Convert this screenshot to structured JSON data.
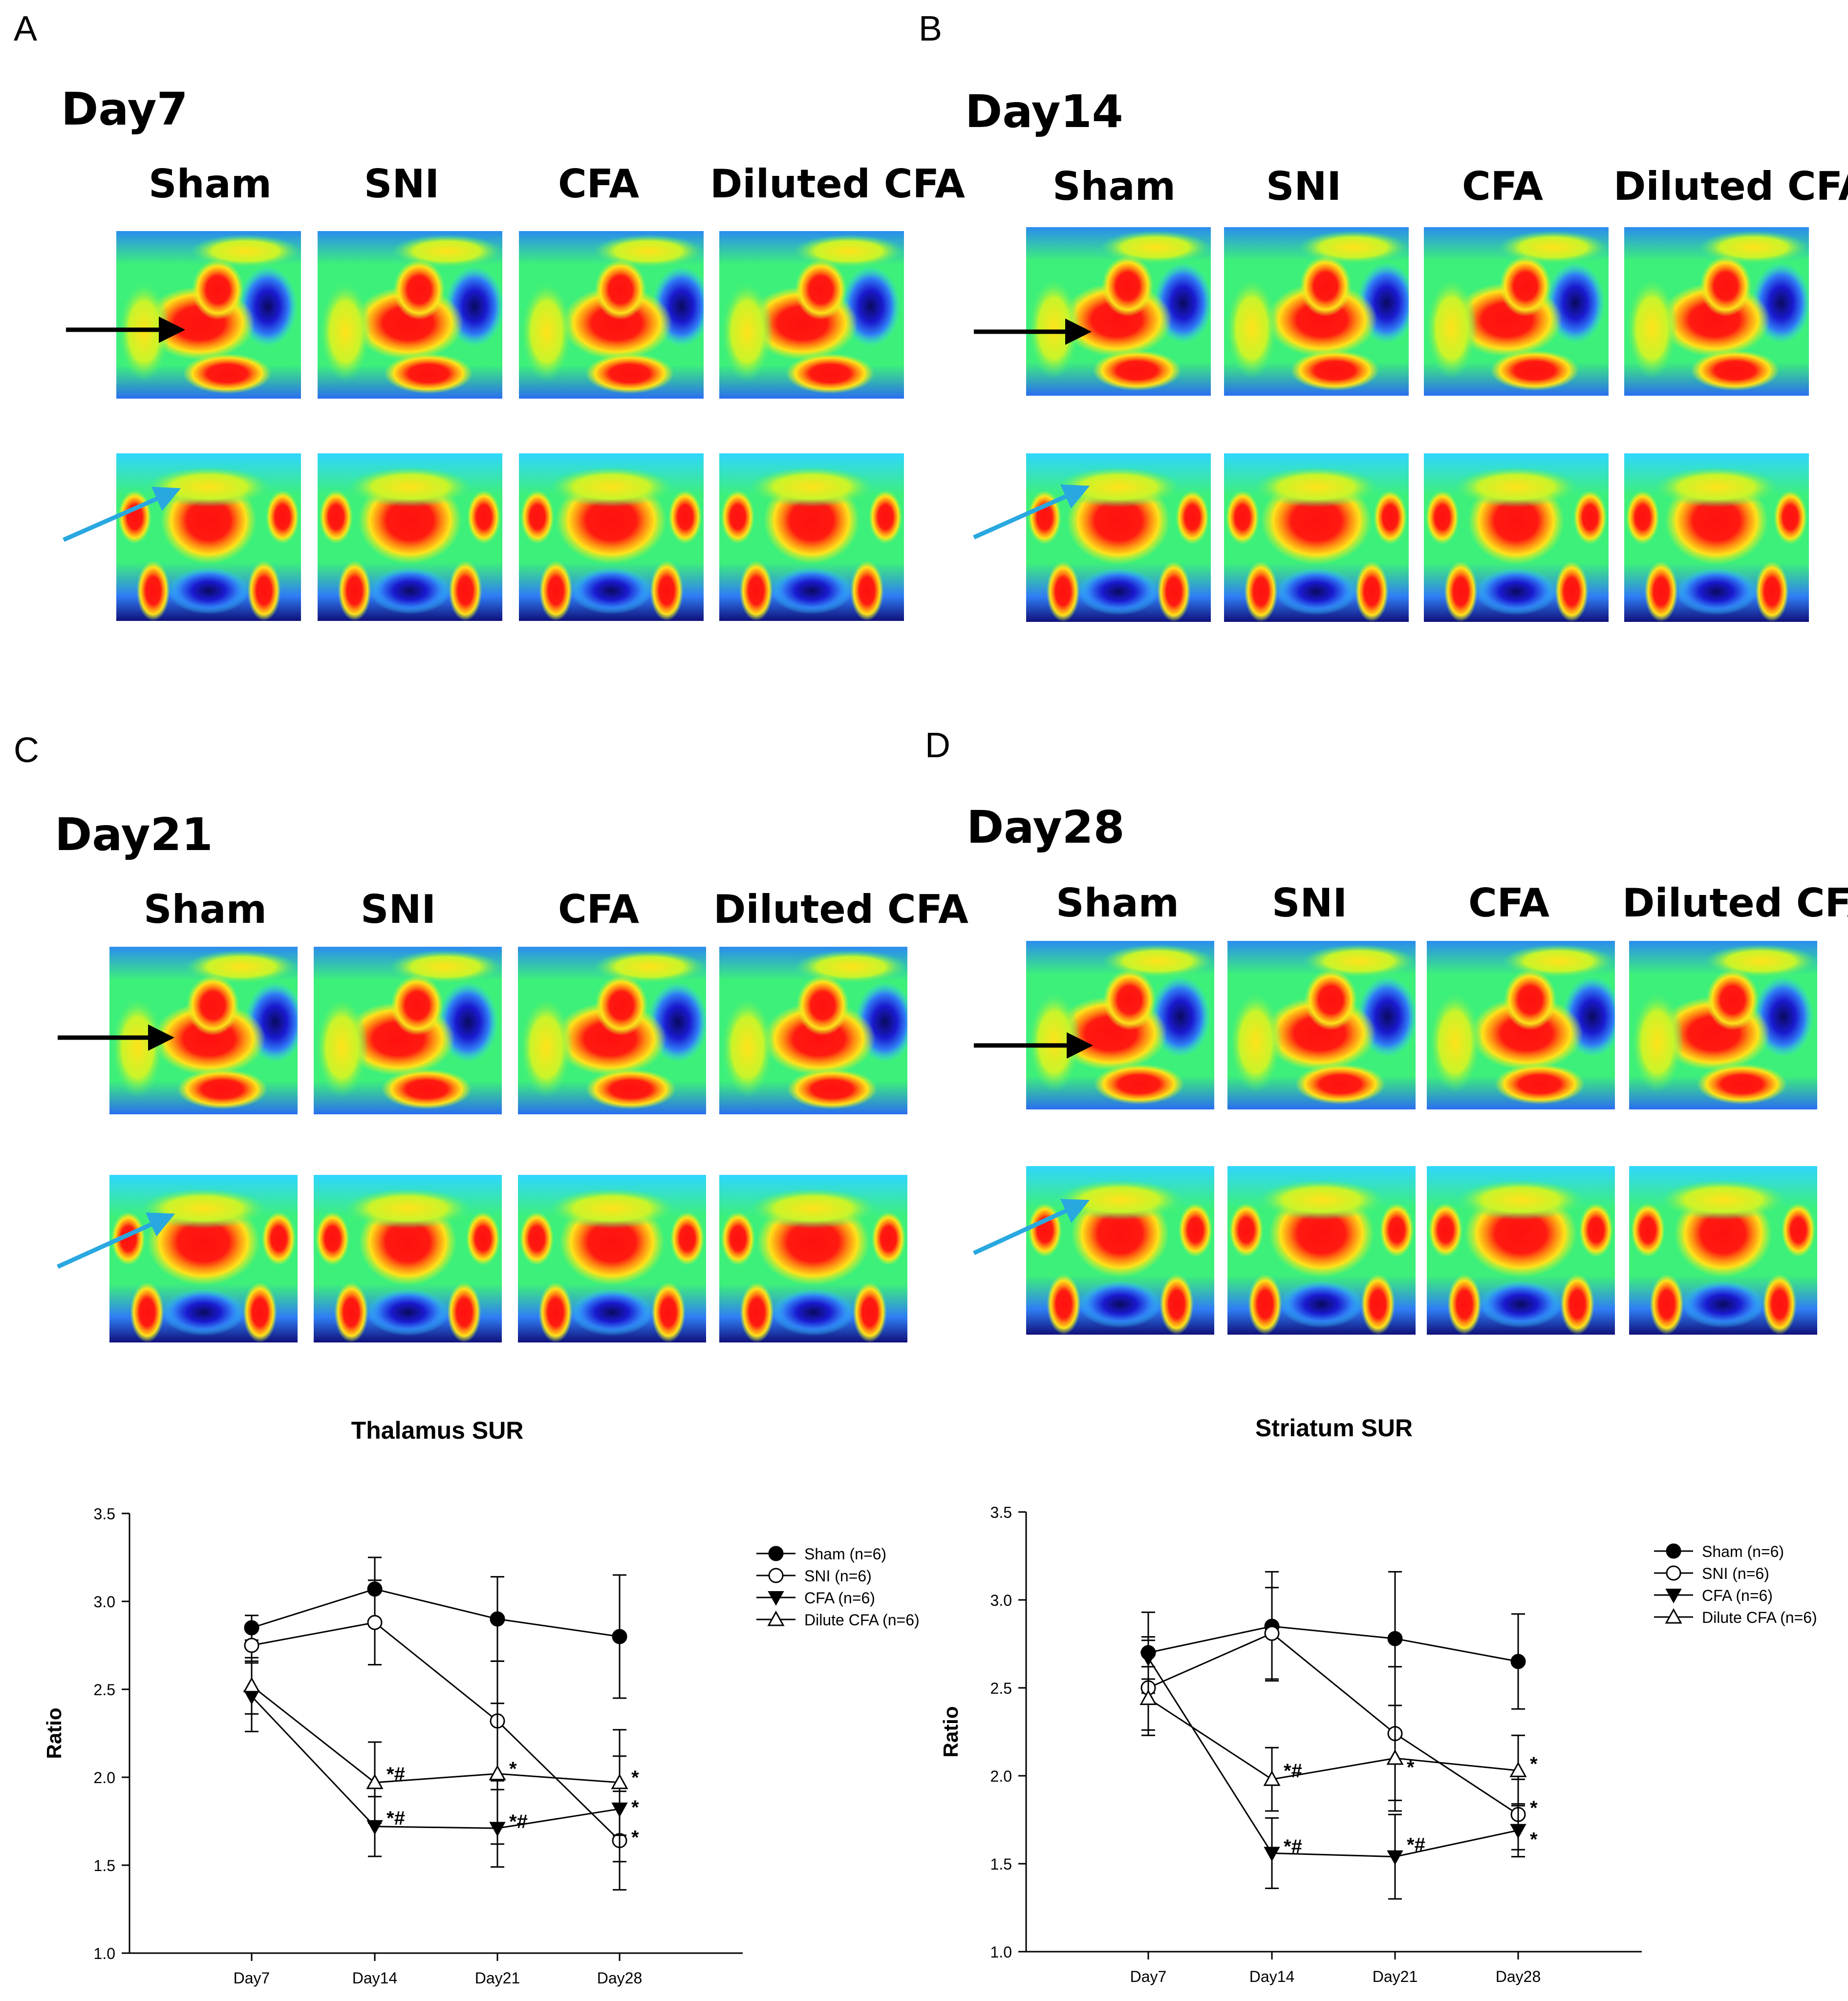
{
  "panel_labels": [
    "A",
    "B",
    "C",
    "D"
  ],
  "panels": [
    {
      "label": "A",
      "day": "Day7"
    },
    {
      "label": "B",
      "day": "Day14"
    },
    {
      "label": "C",
      "day": "Day21"
    },
    {
      "label": "D",
      "day": "Day28"
    }
  ],
  "conditions": [
    "Sham",
    "SNI",
    "CFA",
    "Diluted CFA"
  ],
  "image_views": [
    "sagittal",
    "coronal"
  ],
  "colors": {
    "arrow_black": "#000000",
    "arrow_blue": "#29a8e0",
    "heatmap": [
      "#0a0a40",
      "#1a1ad0",
      "#2f7df5",
      "#2fd6ff",
      "#3df07a",
      "#c8f52a",
      "#ffe21a",
      "#ff7a10",
      "#ff1010"
    ]
  },
  "chart_data": [
    {
      "type": "line",
      "title": "Thalamus SUR",
      "ylabel": "Ratio",
      "xlabel": "",
      "categories": [
        "Day7",
        "Day14",
        "Day21",
        "Day28"
      ],
      "ylim": [
        1.0,
        3.5
      ],
      "yticks": [
        "1.0",
        "1.5",
        "2.0",
        "2.5",
        "3.0",
        "3.5"
      ],
      "legend_position": "top-right",
      "series": [
        {
          "name": "Sham (n=6)",
          "marker": "filled-circle",
          "values": [
            2.85,
            3.07,
            2.9,
            2.8
          ],
          "errors": [
            0.07,
            0.18,
            0.24,
            0.35
          ]
        },
        {
          "name": "SNI (n=6)",
          "marker": "open-circle",
          "values": [
            2.75,
            2.88,
            2.32,
            1.64
          ],
          "errors": [
            0.1,
            0.24,
            0.34,
            0.28
          ]
        },
        {
          "name": "CFA (n=6)",
          "marker": "filled-triangle-down",
          "values": [
            2.46,
            1.72,
            1.71,
            1.82
          ],
          "errors": [
            0.2,
            0.17,
            0.22,
            0.3
          ]
        },
        {
          "name": "Dilute CFA (n=6)",
          "marker": "open-triangle-up",
          "values": [
            2.52,
            1.97,
            2.02,
            1.97
          ],
          "errors": [
            0.16,
            0.23,
            0.4,
            0.3
          ]
        }
      ],
      "annotations": [
        {
          "x": "Day14",
          "y": 2.02,
          "text": "*#"
        },
        {
          "x": "Day14",
          "y": 1.77,
          "text": "*#"
        },
        {
          "x": "Day21",
          "y": 2.05,
          "text": "*"
        },
        {
          "x": "Day21",
          "y": 1.75,
          "text": "*#"
        },
        {
          "x": "Day28",
          "y": 2.0,
          "text": "*"
        },
        {
          "x": "Day28",
          "y": 1.83,
          "text": "*"
        },
        {
          "x": "Day28",
          "y": 1.66,
          "text": "*"
        }
      ]
    },
    {
      "type": "line",
      "title": "Striatum SUR",
      "ylabel": "Ratio",
      "xlabel": "",
      "categories": [
        "Day7",
        "Day14",
        "Day21",
        "Day28"
      ],
      "ylim": [
        1.0,
        3.5
      ],
      "yticks": [
        "1.0",
        "1.5",
        "2.0",
        "2.5",
        "3.0",
        "3.5"
      ],
      "legend_position": "top-right",
      "series": [
        {
          "name": "Sham (n=6)",
          "marker": "filled-circle",
          "values": [
            2.7,
            2.85,
            2.78,
            2.65
          ],
          "errors": [
            0.23,
            0.31,
            0.38,
            0.27
          ]
        },
        {
          "name": "SNI (n=6)",
          "marker": "open-circle",
          "values": [
            2.5,
            2.81,
            2.24,
            1.78
          ],
          "errors": [
            0.27,
            0.26,
            0.38,
            0.2
          ]
        },
        {
          "name": "CFA (n=6)",
          "marker": "filled-triangle-down",
          "values": [
            2.67,
            1.56,
            1.54,
            1.69
          ],
          "errors": [
            0.12,
            0.2,
            0.24,
            0.15
          ]
        },
        {
          "name": "Dilute CFA (n=6)",
          "marker": "open-triangle-up",
          "values": [
            2.44,
            1.98,
            2.1,
            2.03
          ],
          "errors": [
            0.18,
            0.18,
            0.3,
            0.2
          ]
        }
      ],
      "annotations": [
        {
          "x": "Day14",
          "y": 2.03,
          "text": "*#"
        },
        {
          "x": "Day14",
          "y": 1.6,
          "text": "*#"
        },
        {
          "x": "Day21",
          "y": 2.05,
          "text": "*"
        },
        {
          "x": "Day21",
          "y": 1.61,
          "text": "*#"
        },
        {
          "x": "Day28",
          "y": 2.07,
          "text": "*"
        },
        {
          "x": "Day28",
          "y": 1.82,
          "text": "*"
        },
        {
          "x": "Day28",
          "y": 1.64,
          "text": "*"
        }
      ]
    }
  ]
}
